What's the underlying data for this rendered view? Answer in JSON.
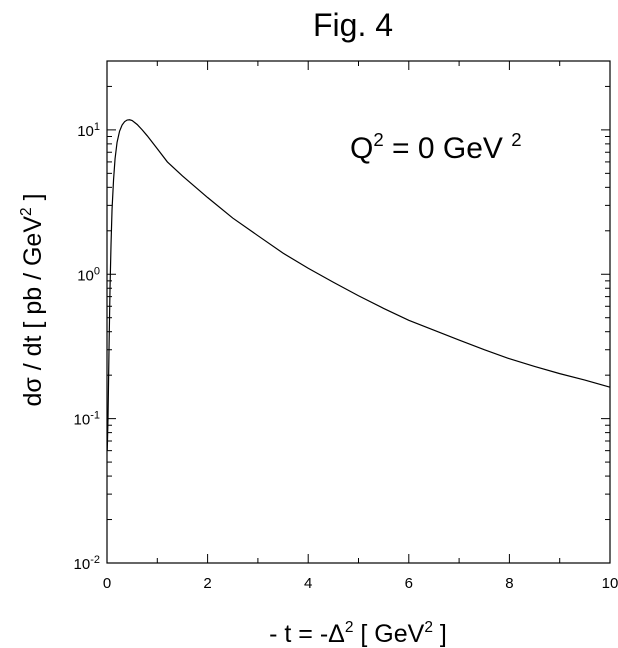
{
  "chart_data": {
    "type": "line",
    "title": "Fig. 4",
    "xlabel": {
      "main": "- t = -Δ",
      "sup": "2",
      "unit_open": "  [ GeV",
      "unit_sup": "2",
      "unit_close": " ]"
    },
    "ylabel": {
      "main": "dσ / dt  [ pb / GeV",
      "sup": "2",
      "close": " ]"
    },
    "annotation": {
      "q": "Q",
      "q_sup": "2",
      "rest": " = 0 GeV ",
      "rest_sup": "2"
    },
    "xlim": [
      0,
      10
    ],
    "ylim": [
      0.01,
      30
    ],
    "yscale": "log",
    "x_ticks": [
      0,
      2,
      4,
      6,
      8,
      10
    ],
    "x_tick_labels": [
      "0",
      "2",
      "4",
      "6",
      "8",
      "10"
    ],
    "y_ticks": [
      {
        "value": 10,
        "base": "10",
        "exp": "1"
      },
      {
        "value": 1,
        "base": "10",
        "exp": "0"
      },
      {
        "value": 0.1,
        "base": "10",
        "exp": "-1"
      },
      {
        "value": 0.01,
        "base": "10",
        "exp": "-2"
      }
    ],
    "grid": false,
    "series": [
      {
        "color": "#000000",
        "x": [
          0.005,
          0.02,
          0.04,
          0.06,
          0.08,
          0.1,
          0.13,
          0.16,
          0.2,
          0.25,
          0.3,
          0.35,
          0.4,
          0.45,
          0.5,
          0.6,
          0.7,
          0.8,
          1.0,
          1.2,
          1.5,
          2.0,
          2.5,
          3.0,
          3.5,
          4.0,
          4.5,
          5.0,
          5.5,
          6.0,
          6.5,
          7.0,
          7.5,
          8.0,
          8.5,
          9.0,
          9.5,
          10.0
        ],
        "y": [
          0.06,
          0.1,
          0.3,
          0.8,
          1.6,
          2.8,
          4.5,
          6.3,
          8.2,
          9.8,
          10.8,
          11.4,
          11.7,
          11.75,
          11.6,
          10.9,
          10.0,
          9.1,
          7.4,
          6.0,
          4.8,
          3.4,
          2.45,
          1.85,
          1.4,
          1.1,
          0.88,
          0.71,
          0.58,
          0.48,
          0.41,
          0.35,
          0.3,
          0.26,
          0.23,
          0.205,
          0.185,
          0.165
        ]
      }
    ]
  }
}
